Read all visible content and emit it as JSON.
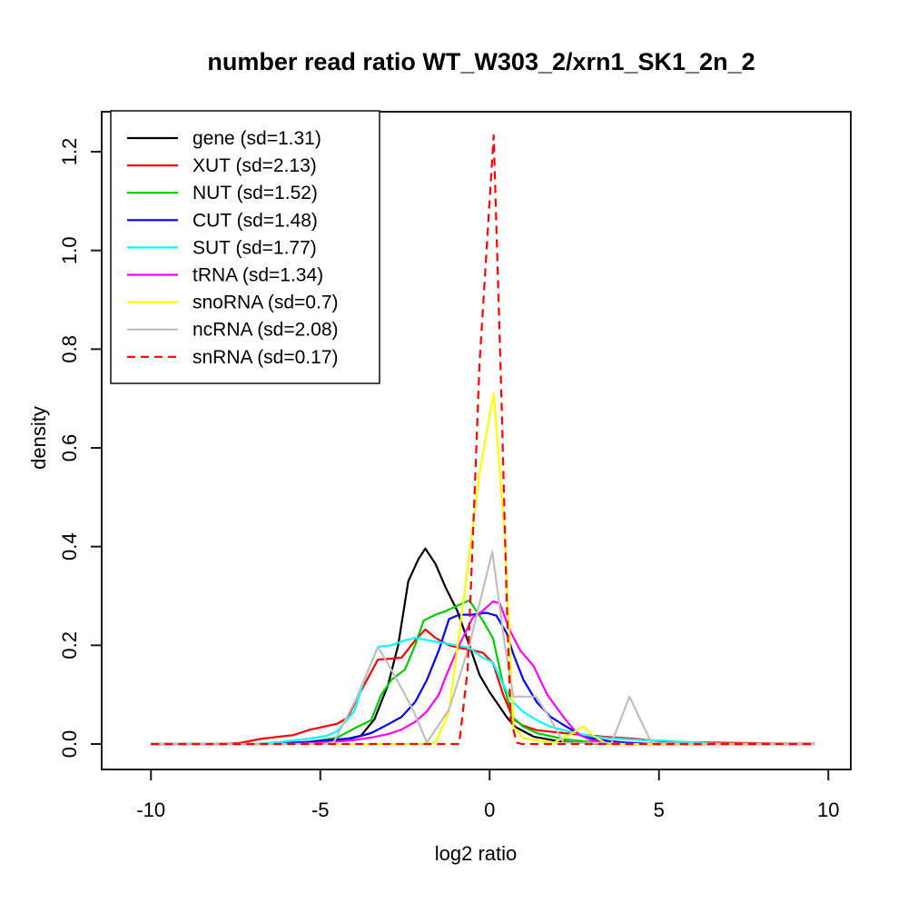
{
  "title": "number read ratio WT_W303_2/xrn1_SK1_2n_2",
  "axes": {
    "xlabel": "log2 ratio",
    "ylabel": "density",
    "x_ticks": [
      {
        "label": "-10",
        "value": -10
      },
      {
        "label": "-5",
        "value": -5
      },
      {
        "label": "0",
        "value": 0
      },
      {
        "label": "5",
        "value": 5
      },
      {
        "label": "10",
        "value": 10
      }
    ],
    "y_ticks": [
      {
        "label": "0.0",
        "value": 0.0
      },
      {
        "label": "0.2",
        "value": 0.2
      },
      {
        "label": "0.4",
        "value": 0.4
      },
      {
        "label": "0.6",
        "value": 0.6
      },
      {
        "label": "0.8",
        "value": 0.8
      },
      {
        "label": "1.0",
        "value": 1.0
      },
      {
        "label": "1.2",
        "value": 1.2
      }
    ]
  },
  "legend": {
    "position": "top-left"
  },
  "chart_data": {
    "type": "line",
    "title": "number read ratio WT_W303_2/xrn1_SK1_2n_2",
    "xlabel": "log2 ratio",
    "ylabel": "density",
    "xlim": [
      -11.2,
      10.7
    ],
    "ylim": [
      -0.05,
      1.28
    ],
    "grid": false,
    "legend_position": "top-left",
    "series": [
      {
        "name": "gene",
        "legend_label": "gene (sd=1.31)",
        "sd": 1.31,
        "color": "#000000",
        "linestyle": "solid",
        "points": [
          [
            -10,
            0
          ],
          [
            -7,
            0
          ],
          [
            -6,
            0.001
          ],
          [
            -5.5,
            0.002
          ],
          [
            -5,
            0.004
          ],
          [
            -4.5,
            0.008
          ],
          [
            -4.1,
            0.012
          ],
          [
            -3.8,
            0.017
          ],
          [
            -3.4,
            0.05
          ],
          [
            -3,
            0.12
          ],
          [
            -2.7,
            0.2
          ],
          [
            -2.4,
            0.33
          ],
          [
            -2.1,
            0.375
          ],
          [
            -1.9,
            0.396
          ],
          [
            -1.6,
            0.365
          ],
          [
            -1.3,
            0.317
          ],
          [
            -0.95,
            0.269
          ],
          [
            -0.6,
            0.2
          ],
          [
            -0.3,
            0.14
          ],
          [
            0,
            0.105
          ],
          [
            0.2,
            0.085
          ],
          [
            0.5,
            0.055
          ],
          [
            0.75,
            0.035
          ],
          [
            1.3,
            0.015
          ],
          [
            2,
            0.006
          ],
          [
            2.5,
            0.003
          ],
          [
            3.2,
            0.001
          ],
          [
            4,
            0
          ],
          [
            9.6,
            0
          ]
        ]
      },
      {
        "name": "XUT",
        "legend_label": "XUT (sd=2.13)",
        "sd": 2.13,
        "color": "#FF0000",
        "linestyle": "solid",
        "points": [
          [
            -10,
            0
          ],
          [
            -8,
            0
          ],
          [
            -7.4,
            0.002
          ],
          [
            -6.7,
            0.011
          ],
          [
            -5.8,
            0.018
          ],
          [
            -5.3,
            0.029
          ],
          [
            -4.5,
            0.041
          ],
          [
            -4.2,
            0.053
          ],
          [
            -3.7,
            0.12
          ],
          [
            -3.3,
            0.171
          ],
          [
            -2.9,
            0.173
          ],
          [
            -2.6,
            0.175
          ],
          [
            -2.2,
            0.21
          ],
          [
            -1.9,
            0.232
          ],
          [
            -1.6,
            0.215
          ],
          [
            -1.2,
            0.2
          ],
          [
            -0.9,
            0.195
          ],
          [
            -0.5,
            0.19
          ],
          [
            -0.2,
            0.185
          ],
          [
            0.1,
            0.164
          ],
          [
            0.4,
            0.1
          ],
          [
            0.7,
            0.05
          ],
          [
            1,
            0.037
          ],
          [
            1.4,
            0.028
          ],
          [
            2.2,
            0.022
          ],
          [
            2.8,
            0.018
          ],
          [
            3.5,
            0.014
          ],
          [
            4.2,
            0.011
          ],
          [
            5,
            0.006
          ],
          [
            5.6,
            0.004
          ],
          [
            6.5,
            0.003
          ],
          [
            7.5,
            0.002
          ],
          [
            8.5,
            0.001
          ],
          [
            9.6,
            0.001
          ]
        ]
      },
      {
        "name": "NUT",
        "legend_label": "NUT (sd=1.52)",
        "sd": 1.52,
        "color": "#00CC00",
        "linestyle": "solid",
        "points": [
          [
            -10,
            0
          ],
          [
            -6.5,
            0
          ],
          [
            -5.6,
            0.002
          ],
          [
            -5,
            0.008
          ],
          [
            -4.5,
            0.013
          ],
          [
            -3.9,
            0.035
          ],
          [
            -3.5,
            0.048
          ],
          [
            -3.2,
            0.1
          ],
          [
            -2.9,
            0.13
          ],
          [
            -2.5,
            0.151
          ],
          [
            -2.2,
            0.2
          ],
          [
            -1.95,
            0.25
          ],
          [
            -1.6,
            0.262
          ],
          [
            -1.3,
            0.269
          ],
          [
            -0.9,
            0.282
          ],
          [
            -0.6,
            0.291
          ],
          [
            -0.2,
            0.25
          ],
          [
            0.1,
            0.214
          ],
          [
            0.4,
            0.12
          ],
          [
            0.7,
            0.053
          ],
          [
            1,
            0.035
          ],
          [
            1.4,
            0.022
          ],
          [
            2.2,
            0.01
          ],
          [
            3,
            0.004
          ],
          [
            4,
            0.001
          ],
          [
            5,
            0
          ],
          [
            9.6,
            0
          ]
        ]
      },
      {
        "name": "CUT",
        "legend_label": "CUT (sd=1.48)",
        "sd": 1.48,
        "color": "#0000FF",
        "linestyle": "solid",
        "points": [
          [
            -10,
            0
          ],
          [
            -6.8,
            0
          ],
          [
            -6,
            0.002
          ],
          [
            -5.2,
            0.005
          ],
          [
            -4.6,
            0.009
          ],
          [
            -4.1,
            0.011
          ],
          [
            -3.5,
            0.022
          ],
          [
            -3,
            0.04
          ],
          [
            -2.6,
            0.055
          ],
          [
            -2.2,
            0.085
          ],
          [
            -1.85,
            0.13
          ],
          [
            -1.5,
            0.19
          ],
          [
            -1.2,
            0.253
          ],
          [
            -0.9,
            0.262
          ],
          [
            -0.5,
            0.262
          ],
          [
            -0.1,
            0.266
          ],
          [
            0.2,
            0.26
          ],
          [
            0.5,
            0.225
          ],
          [
            0.7,
            0.182
          ],
          [
            1,
            0.13
          ],
          [
            1.4,
            0.084
          ],
          [
            1.8,
            0.055
          ],
          [
            2.2,
            0.038
          ],
          [
            2.6,
            0.022
          ],
          [
            3,
            0.012
          ],
          [
            3.5,
            0.006
          ],
          [
            4,
            0.003
          ],
          [
            4.6,
            0.001
          ],
          [
            5.2,
            0
          ],
          [
            9.6,
            0
          ]
        ]
      },
      {
        "name": "SUT",
        "legend_label": "SUT (sd=1.77)",
        "sd": 1.77,
        "color": "#00FFFF",
        "linestyle": "solid",
        "points": [
          [
            -10,
            0
          ],
          [
            -7,
            0
          ],
          [
            -6.2,
            0.004
          ],
          [
            -5.3,
            0.011
          ],
          [
            -4.8,
            0.017
          ],
          [
            -4.5,
            0.026
          ],
          [
            -4,
            0.066
          ],
          [
            -3.7,
            0.13
          ],
          [
            -3.3,
            0.197
          ],
          [
            -2.9,
            0.2
          ],
          [
            -2.5,
            0.21
          ],
          [
            -2.2,
            0.215
          ],
          [
            -1.8,
            0.21
          ],
          [
            -1.4,
            0.205
          ],
          [
            -1,
            0.2
          ],
          [
            -0.6,
            0.195
          ],
          [
            -0.25,
            0.177
          ],
          [
            0.1,
            0.165
          ],
          [
            0.4,
            0.12
          ],
          [
            0.7,
            0.084
          ],
          [
            1,
            0.065
          ],
          [
            1.4,
            0.048
          ],
          [
            1.8,
            0.035
          ],
          [
            2.2,
            0.028
          ],
          [
            2.6,
            0.021
          ],
          [
            3,
            0.016
          ],
          [
            3.5,
            0.012
          ],
          [
            4,
            0.01
          ],
          [
            4.5,
            0.008
          ],
          [
            5.1,
            0.007
          ],
          [
            5.6,
            0.005
          ],
          [
            6.1,
            0.003
          ],
          [
            6.6,
            0.001
          ],
          [
            7.1,
            0
          ],
          [
            9.6,
            0
          ]
        ]
      },
      {
        "name": "tRNA",
        "legend_label": "tRNA (sd=1.34)",
        "sd": 1.34,
        "color": "#FF00FF",
        "linestyle": "solid",
        "points": [
          [
            -10,
            0
          ],
          [
            -5.8,
            0
          ],
          [
            -5.2,
            0.002
          ],
          [
            -4.5,
            0.005
          ],
          [
            -4,
            0.008
          ],
          [
            -3.5,
            0.013
          ],
          [
            -3,
            0.02
          ],
          [
            -2.6,
            0.029
          ],
          [
            -2.2,
            0.045
          ],
          [
            -1.85,
            0.066
          ],
          [
            -1.5,
            0.1
          ],
          [
            -1.3,
            0.136
          ],
          [
            -0.9,
            0.2
          ],
          [
            -0.5,
            0.256
          ],
          [
            -0.2,
            0.27
          ],
          [
            0.1,
            0.289
          ],
          [
            0.3,
            0.285
          ],
          [
            0.6,
            0.23
          ],
          [
            0.9,
            0.19
          ],
          [
            1.3,
            0.158
          ],
          [
            1.7,
            0.1
          ],
          [
            2.2,
            0.053
          ],
          [
            2.6,
            0.02
          ],
          [
            3,
            0.008
          ],
          [
            3.5,
            0.002
          ],
          [
            4,
            0
          ],
          [
            9.6,
            0
          ]
        ]
      },
      {
        "name": "snoRNA",
        "legend_label": "snoRNA (sd=0.7)",
        "sd": 0.7,
        "color": "#FFFF00",
        "linestyle": "solid",
        "points": [
          [
            -10,
            0
          ],
          [
            -2,
            0
          ],
          [
            -1.6,
            0.003
          ],
          [
            -1.2,
            0.066
          ],
          [
            -0.7,
            0.33
          ],
          [
            -0.3,
            0.55
          ],
          [
            0.12,
            0.71
          ],
          [
            0.45,
            0.42
          ],
          [
            0.7,
            0.035
          ],
          [
            1,
            0.012
          ],
          [
            1.5,
            0.006
          ],
          [
            1.9,
            0.003
          ],
          [
            2.4,
            0.02
          ],
          [
            2.76,
            0.036
          ],
          [
            3.1,
            0.015
          ],
          [
            3.45,
            0.001
          ],
          [
            4,
            0
          ],
          [
            9.6,
            0
          ]
        ]
      },
      {
        "name": "ncRNA",
        "legend_label": "ncRNA (sd=2.08)",
        "sd": 2.08,
        "color": "#BFBFBF",
        "linestyle": "solid",
        "points": [
          [
            -10,
            0
          ],
          [
            -4.9,
            0
          ],
          [
            -4.6,
            0.004
          ],
          [
            -3.95,
            0.09
          ],
          [
            -3.3,
            0.197
          ],
          [
            -2.9,
            0.15
          ],
          [
            -2.5,
            0.1
          ],
          [
            -2.2,
            0.06
          ],
          [
            -1.85,
            0.003
          ],
          [
            -1.2,
            0.07
          ],
          [
            -0.6,
            0.2
          ],
          [
            0.08,
            0.39
          ],
          [
            0.45,
            0.2
          ],
          [
            0.7,
            0.096
          ],
          [
            1.37,
            0.096
          ],
          [
            1.8,
            0.05
          ],
          [
            2.17,
            0.003
          ],
          [
            2.6,
            0.002
          ],
          [
            3.6,
            0.002
          ],
          [
            4.13,
            0.096
          ],
          [
            4.78,
            0.002
          ],
          [
            5.5,
            0.001
          ],
          [
            9.6,
            0
          ]
        ]
      },
      {
        "name": "snRNA",
        "legend_label": "snRNA (sd=0.17)",
        "sd": 0.17,
        "color": "#FF0000",
        "linestyle": "dashed",
        "points": [
          [
            -10,
            0
          ],
          [
            -0.9,
            0
          ],
          [
            -0.65,
            0.15
          ],
          [
            -0.46,
            0.48
          ],
          [
            -0.3,
            0.77
          ],
          [
            0.12,
            1.233
          ],
          [
            0.35,
            0.7
          ],
          [
            0.5,
            0.3
          ],
          [
            0.62,
            0.05
          ],
          [
            0.8,
            0.003
          ],
          [
            0.95,
            0
          ],
          [
            9.6,
            0
          ]
        ]
      }
    ]
  }
}
